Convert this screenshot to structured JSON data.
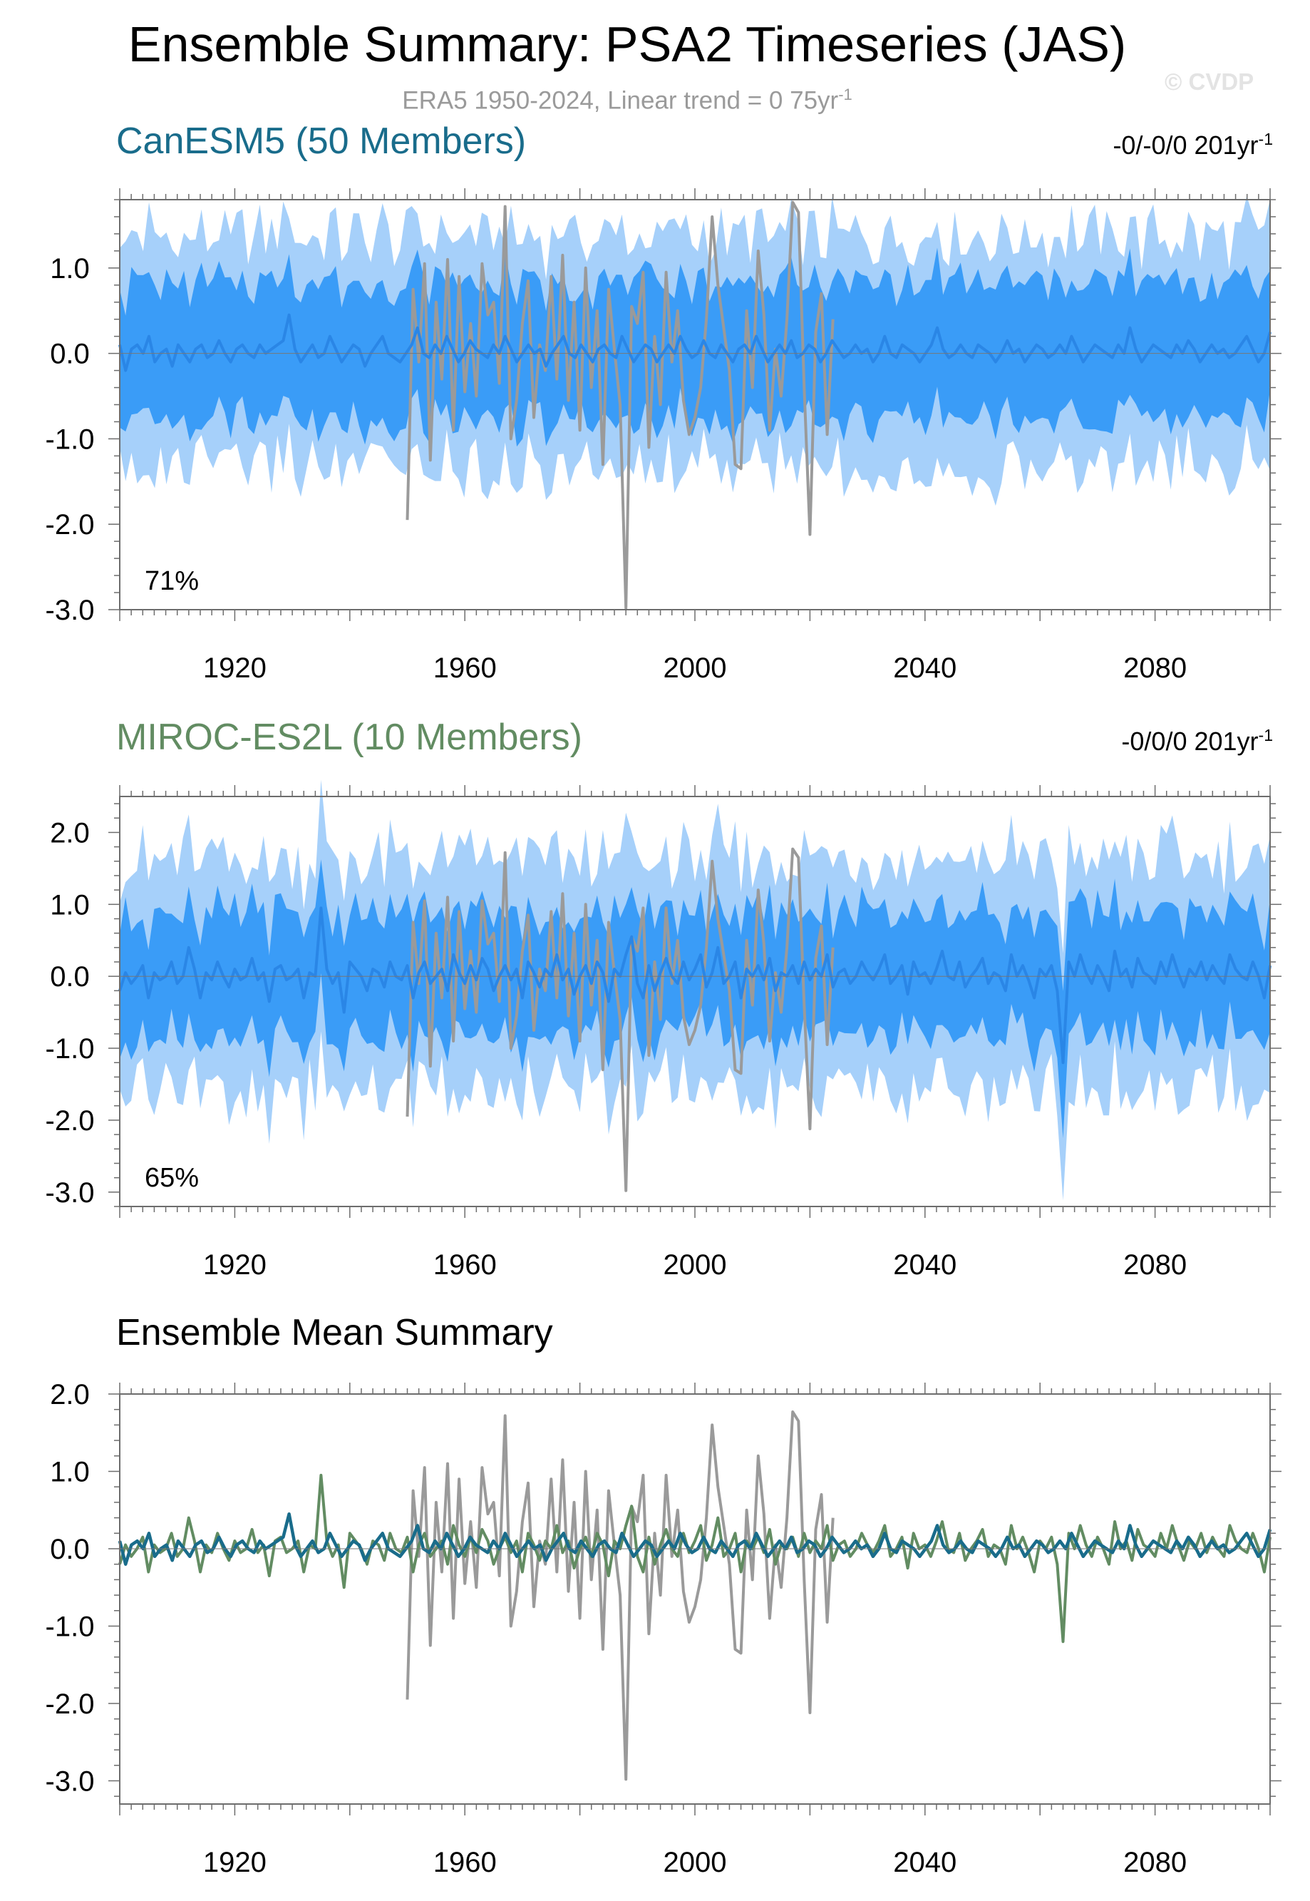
{
  "header": {
    "title": "Ensemble Summary: PSA2 Timeseries (JAS)",
    "subtitle_text": "ERA5 1950-2024, Linear trend = 0 75yr",
    "subtitle_exp": "-1",
    "watermark": "© CVDP"
  },
  "colors": {
    "band_outer": "#a6d0fa",
    "band_inner": "#3a9cf7",
    "mean_line": "#2a86e6",
    "obs_line": "#9a9a9a",
    "canesm5": "#196c8b",
    "miroc": "#628c62",
    "axis": "#6d6d6d"
  },
  "panels": [
    {
      "title": "CanESM5 (50 Members)",
      "title_color": "#196c8b",
      "trend_text": "-0/-0/0 201yr",
      "trend_exp": "-1",
      "percent": "71%",
      "yticks": [
        "1.0",
        "0.0",
        "-1.0",
        "-2.0",
        "-3.0"
      ],
      "xticks": [
        "1920",
        "1960",
        "2000",
        "2040",
        "2080"
      ]
    },
    {
      "title": "MIROC-ES2L (10 Members)",
      "title_color": "#628c62",
      "trend_text": "-0/0/0 201yr",
      "trend_exp": "-1",
      "percent": "65%",
      "yticks": [
        "2.0",
        "1.0",
        "0.0",
        "-1.0",
        "-2.0",
        "-3.0"
      ],
      "xticks": [
        "1920",
        "1960",
        "2000",
        "2040",
        "2080"
      ]
    },
    {
      "title": "Ensemble Mean Summary",
      "title_color": "#000000",
      "yticks": [
        "2.0",
        "1.0",
        "0.0",
        "-1.0",
        "-2.0",
        "-3.0"
      ],
      "xticks": [
        "1920",
        "1960",
        "2000",
        "2040",
        "2080"
      ]
    }
  ],
  "chart_data": [
    {
      "type": "area",
      "title": "CanESM5 (50 Members)",
      "xlim": [
        1900,
        2100
      ],
      "ylim": [
        -3.0,
        1.8
      ],
      "series": [
        {
          "name": "ERA5",
          "x_start": 1950,
          "x_end": 2024,
          "values": [
            -1.95,
            0.75,
            -0.1,
            1.05,
            -1.25,
            0.6,
            -0.3,
            1.1,
            -0.9,
            0.9,
            -0.45,
            0.35,
            -0.5,
            1.05,
            0.45,
            0.6,
            -0.35,
            1.72,
            -1.0,
            -0.55,
            0.35,
            0.85,
            -0.75,
            0.1,
            -0.2,
            0.9,
            -0.3,
            1.15,
            -0.55,
            0.6,
            -0.9,
            1.0,
            -0.4,
            0.5,
            -1.3,
            0.75,
            0.05,
            -0.6,
            -2.98,
            0.55,
            0.35,
            0.95,
            -1.1,
            0.2,
            -0.6,
            0.95,
            -0.1,
            0.5,
            -0.55,
            -0.95,
            -0.75,
            -0.4,
            0.4,
            1.6,
            0.8,
            0.3,
            -0.2,
            -1.3,
            -1.35,
            0.5,
            -0.4,
            1.2,
            0.45,
            -0.9,
            0.05,
            -0.5,
            0.4,
            1.77,
            1.65,
            -0.4,
            -2.12,
            0.25,
            0.7,
            -0.95,
            0.4
          ]
        },
        {
          "name": "ensemble mean",
          "x_start": 1900,
          "x_end": 2100,
          "values": [
            0.1,
            -0.2,
            0.05,
            0.1,
            0.0,
            0.2,
            -0.1,
            0.0,
            0.05,
            -0.15,
            0.1,
            0.0,
            -0.1,
            0.05,
            0.1,
            -0.05,
            0.0,
            0.15,
            0.0,
            -0.1,
            0.05,
            0.1,
            0.0,
            -0.05,
            0.1,
            0.0,
            0.05,
            0.1,
            0.15,
            0.45,
            0.05,
            -0.1,
            0.0,
            0.1,
            -0.05,
            0.0,
            0.2,
            0.05,
            -0.1,
            0.0,
            0.1,
            0.05,
            -0.15,
            0.0,
            0.1,
            0.2,
            0.0,
            -0.05,
            -0.1,
            0.0,
            0.1,
            0.3,
            0.0,
            -0.05,
            0.1,
            0.0,
            0.2,
            0.05,
            -0.1,
            0.0,
            0.15,
            0.05,
            0.0,
            -0.05,
            0.1,
            0.0,
            0.2,
            0.05,
            -0.1,
            0.0,
            0.1,
            0.0,
            0.05,
            -0.15,
            0.0,
            0.1,
            0.2,
            0.0,
            -0.05,
            0.1,
            0.0,
            -0.1,
            0.05,
            0.1,
            0.0,
            -0.05,
            0.2,
            0.05,
            -0.1,
            0.0,
            0.1,
            0.05,
            -0.1,
            0.0,
            0.1,
            0.0,
            0.2,
            0.05,
            -0.05,
            0.0,
            0.15,
            0.0,
            -0.05,
            0.1,
            0.0,
            -0.1,
            0.05,
            0.1,
            0.0,
            0.2,
            0.05,
            -0.1,
            0.0,
            0.1,
            0.0,
            0.15,
            -0.05,
            0.0,
            0.1,
            0.05,
            -0.1,
            0.0,
            0.15,
            0.05,
            -0.05,
            0.0,
            0.1,
            0.0,
            0.05,
            -0.1,
            0.0,
            0.2,
            0.0,
            -0.05,
            0.1,
            0.05,
            0.0,
            -0.1,
            0.0,
            0.1,
            0.3,
            0.05,
            -0.05,
            0.0,
            0.1,
            0.0,
            -0.05,
            0.1,
            0.05,
            0.0,
            -0.1,
            0.0,
            0.15,
            0.0,
            0.05,
            -0.1,
            0.0,
            0.1,
            0.05,
            -0.05,
            0.0,
            0.1,
            0.0,
            0.2,
            0.05,
            -0.1,
            0.0,
            0.1,
            0.05,
            0.0,
            -0.05,
            0.1,
            0.0,
            0.3,
            0.05,
            -0.1,
            0.0,
            0.1,
            0.05,
            0.0,
            -0.05,
            0.1,
            0.0,
            0.15,
            0.05,
            -0.1,
            0.0,
            0.1,
            0.0,
            0.05,
            -0.05,
            0.0,
            0.1,
            0.2,
            0.05,
            -0.1,
            0.0,
            0.25
          ]
        }
      ],
      "band_inner_halfwidth": 0.8,
      "band_outer_halfwidth": 1.35
    },
    {
      "type": "area",
      "title": "MIROC-ES2L (10 Members)",
      "xlim": [
        1900,
        2100
      ],
      "ylim": [
        -3.2,
        2.5
      ],
      "series": [
        {
          "name": "ERA5",
          "x_start": 1950,
          "x_end": 2024,
          "values": [
            -1.95,
            0.75,
            -0.1,
            1.05,
            -1.25,
            0.6,
            -0.3,
            1.1,
            -0.9,
            0.9,
            -0.45,
            0.35,
            -0.5,
            1.05,
            0.45,
            0.6,
            -0.35,
            1.72,
            -1.0,
            -0.55,
            0.35,
            0.85,
            -0.75,
            0.1,
            -0.2,
            0.9,
            -0.3,
            1.15,
            -0.55,
            0.6,
            -0.9,
            1.0,
            -0.4,
            0.5,
            -1.3,
            0.75,
            0.05,
            -0.6,
            -2.98,
            0.55,
            0.35,
            0.95,
            -1.1,
            0.2,
            -0.6,
            0.95,
            -0.1,
            0.5,
            -0.55,
            -0.95,
            -0.75,
            -0.4,
            0.4,
            1.6,
            0.8,
            0.3,
            -0.2,
            -1.3,
            -1.35,
            0.5,
            -0.4,
            1.2,
            0.45,
            -0.9,
            0.05,
            -0.5,
            0.4,
            1.77,
            1.65,
            -0.4,
            -2.12,
            0.25,
            0.7,
            -0.95,
            0.4
          ]
        },
        {
          "name": "ensemble mean",
          "x_start": 1900,
          "x_end": 2100,
          "values": [
            -0.2,
            0.05,
            -0.1,
            0.0,
            0.15,
            -0.3,
            0.05,
            -0.05,
            0.0,
            0.2,
            -0.1,
            0.0,
            0.4,
            0.1,
            -0.3,
            0.05,
            -0.05,
            0.2,
            0.0,
            -0.15,
            0.1,
            -0.05,
            0.0,
            0.25,
            -0.05,
            0.05,
            -0.35,
            0.1,
            0.15,
            -0.05,
            0.0,
            0.1,
            -0.3,
            0.05,
            0.0,
            0.95,
            0.1,
            -0.1,
            0.05,
            -0.5,
            0.2,
            0.1,
            0.0,
            -0.2,
            0.1,
            0.05,
            -0.15,
            0.2,
            0.0,
            -0.05,
            0.15,
            -0.3,
            0.05,
            0.2,
            -0.1,
            0.0,
            0.1,
            -0.2,
            0.3,
            0.05,
            -0.1,
            0.15,
            -0.05,
            0.25,
            0.1,
            -0.2,
            0.0,
            0.15,
            -0.05,
            0.1,
            -0.3,
            0.2,
            0.05,
            -0.15,
            0.1,
            0.0,
            0.3,
            -0.05,
            0.1,
            -0.25,
            0.0,
            0.15,
            -0.1,
            0.2,
            0.05,
            -0.35,
            0.1,
            0.0,
            0.3,
            0.55,
            -0.1,
            -0.3,
            0.15,
            -0.2,
            0.05,
            0.25,
            0.0,
            -0.1,
            0.2,
            -0.05,
            0.1,
            0.3,
            -0.15,
            0.05,
            0.4,
            -0.1,
            0.0,
            0.2,
            -0.3,
            0.1,
            0.0,
            0.15,
            -0.05,
            0.25,
            -0.2,
            0.05,
            0.0,
            0.15,
            -0.1,
            0.2,
            -0.05,
            0.1,
            0.0,
            0.3,
            -0.15,
            0.05,
            0.1,
            -0.1,
            0.0,
            0.2,
            0.05,
            -0.05,
            0.1,
            0.3,
            -0.1,
            0.0,
            0.15,
            -0.25,
            0.2,
            0.0,
            0.05,
            -0.1,
            0.1,
            0.35,
            0.0,
            -0.05,
            0.2,
            -0.15,
            0.0,
            0.1,
            0.25,
            -0.1,
            0.05,
            0.0,
            -0.2,
            0.3,
            0.0,
            0.15,
            -0.05,
            -0.3,
            0.1,
            0.0,
            0.15,
            -0.2,
            -1.2,
            0.2,
            0.0,
            0.3,
            0.05,
            -0.1,
            0.15,
            0.0,
            -0.2,
            0.35,
            0.0,
            0.1,
            -0.15,
            0.25,
            0.05,
            0.0,
            -0.1,
            0.2,
            0.0,
            0.3,
            0.05,
            -0.15,
            0.1,
            0.0,
            0.2,
            -0.05,
            0.15,
            0.0,
            -0.1,
            0.3,
            0.1,
            0.0,
            -0.05,
            0.2,
            0.0,
            -0.3,
            0.15
          ]
        }
      ],
      "band_inner_halfwidth": 0.85,
      "band_outer_halfwidth": 1.6
    },
    {
      "type": "line",
      "title": "Ensemble Mean Summary",
      "xlim": [
        1900,
        2100
      ],
      "ylim": [
        -3.3,
        2.0
      ],
      "series": [
        {
          "name": "ERA5",
          "x_start": 1950,
          "x_end": 2024,
          "values": [
            -1.95,
            0.75,
            -0.1,
            1.05,
            -1.25,
            0.6,
            -0.3,
            1.1,
            -0.9,
            0.9,
            -0.45,
            0.35,
            -0.5,
            1.05,
            0.45,
            0.6,
            -0.35,
            1.72,
            -1.0,
            -0.55,
            0.35,
            0.85,
            -0.75,
            0.1,
            -0.2,
            0.9,
            -0.3,
            1.15,
            -0.55,
            0.6,
            -0.9,
            1.0,
            -0.4,
            0.5,
            -1.3,
            0.75,
            0.05,
            -0.6,
            -2.98,
            0.55,
            0.35,
            0.95,
            -1.1,
            0.2,
            -0.6,
            0.95,
            -0.1,
            0.5,
            -0.55,
            -0.95,
            -0.75,
            -0.4,
            0.4,
            1.6,
            0.8,
            0.3,
            -0.2,
            -1.3,
            -1.35,
            0.5,
            -0.4,
            1.2,
            0.45,
            -0.9,
            0.05,
            -0.5,
            0.4,
            1.77,
            1.65,
            -0.4,
            -2.12,
            0.25,
            0.7,
            -0.95,
            0.4
          ]
        },
        {
          "name": "CanESM5",
          "ref": 0
        },
        {
          "name": "MIROC-ES2L",
          "ref": 1
        }
      ]
    }
  ]
}
